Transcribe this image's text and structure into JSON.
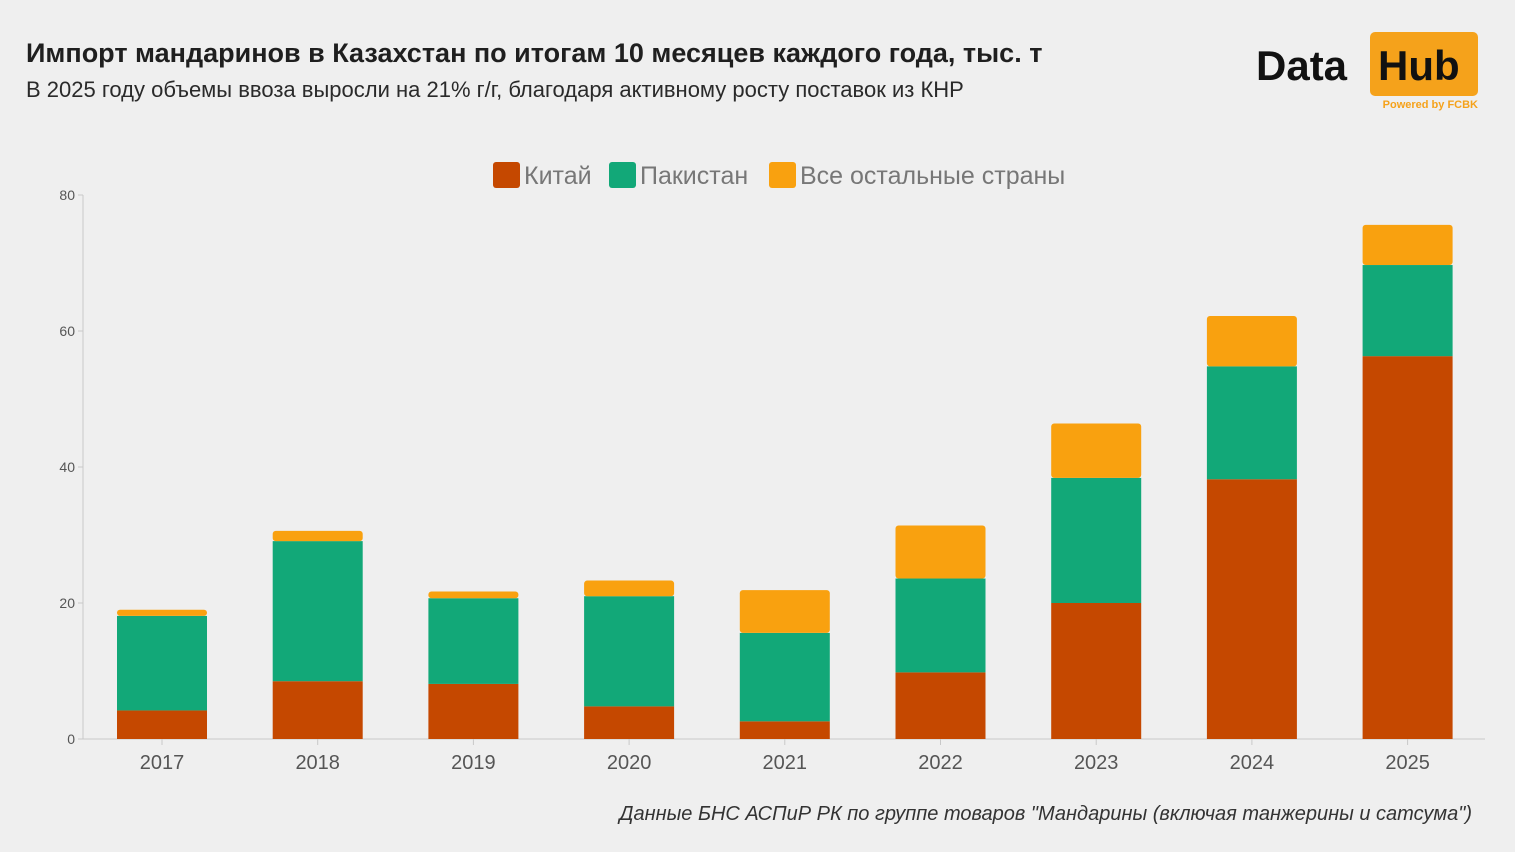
{
  "header": {
    "title": "Импорт мандаринов в Казахстан по итогам 10 месяцев каждого года, тыс. т",
    "subtitle": "В 2025 году объемы ввоза выросли на 21% г/г, благодаря активному росту поставок из КНР"
  },
  "logo": {
    "word1": "Data",
    "word2": "Hub",
    "powered": "Powered by FCBK"
  },
  "footnote": "Данные БНС АСПиР РК по группе товаров \"Мандарины (включая танжерины и сатсума\")",
  "colors": {
    "china": "#c54800",
    "pakistan": "#12a878",
    "other": "#f9a10f",
    "background": "#efefef",
    "brand": "#f5a21b"
  },
  "chart_data": {
    "type": "bar",
    "stacked": true,
    "categories": [
      "2017",
      "2018",
      "2019",
      "2020",
      "2021",
      "2022",
      "2023",
      "2024",
      "2025"
    ],
    "series": [
      {
        "name": "Китай",
        "color": "#c54800",
        "values": [
          4.2,
          8.5,
          8.1,
          4.8,
          2.6,
          9.8,
          20.0,
          38.2,
          56.3
        ]
      },
      {
        "name": "Пакистан",
        "color": "#12a878",
        "values": [
          13.9,
          20.6,
          12.6,
          16.2,
          13.0,
          13.8,
          18.4,
          16.6,
          13.4
        ]
      },
      {
        "name": "Все остальные страны",
        "color": "#f9a10f",
        "values": [
          0.9,
          1.5,
          1.0,
          2.3,
          6.3,
          7.8,
          8.0,
          7.4,
          5.9
        ]
      }
    ],
    "ylim": [
      0,
      80
    ],
    "yticks": [
      "0",
      "20",
      "40",
      "60",
      "80"
    ],
    "legend": "top-center",
    "grid": false,
    "xlabel": "",
    "ylabel": ""
  }
}
